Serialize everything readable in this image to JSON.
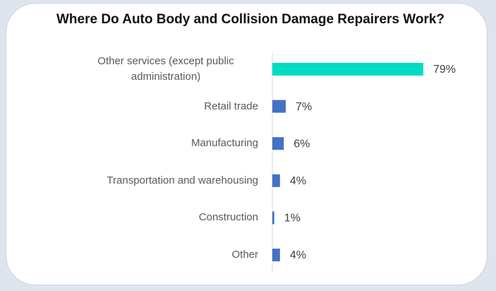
{
  "chart_data": {
    "type": "bar",
    "orientation": "horizontal",
    "title": "Where Do Auto Body and Collision Damage Repairers Work?",
    "categories": [
      "Other services (except public administration)",
      "Retail trade",
      "Manufacturing",
      "Transportation and warehousing",
      "Construction",
      "Other"
    ],
    "values": [
      79,
      7,
      6,
      4,
      1,
      4
    ],
    "value_labels": [
      "79%",
      "7%",
      "6%",
      "4%",
      "1%",
      "4%"
    ],
    "colors": [
      "#00dcc2",
      "#4472c4",
      "#4472c4",
      "#4472c4",
      "#4472c4",
      "#4472c4"
    ]
  }
}
